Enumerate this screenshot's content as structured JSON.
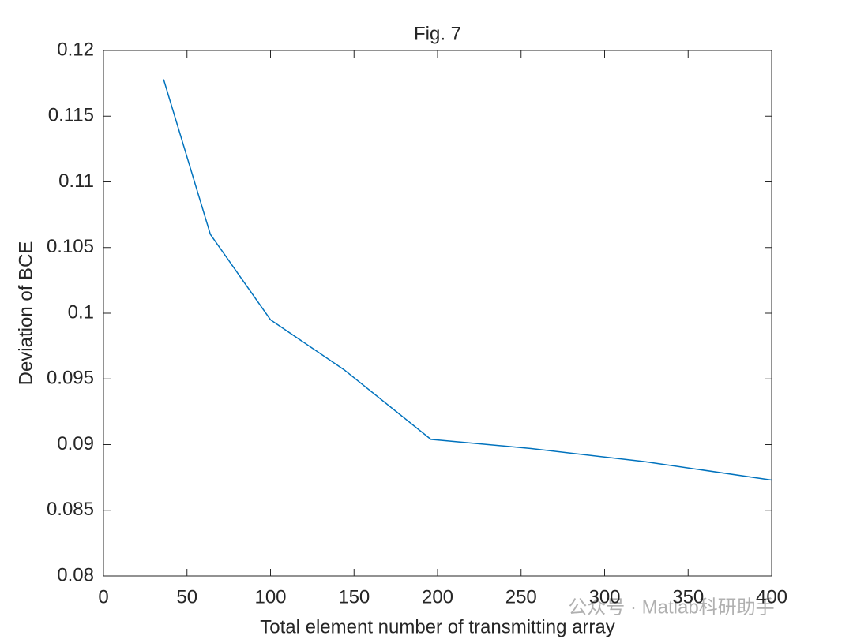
{
  "chart_data": {
    "type": "line",
    "title": "Fig. 7",
    "x_label": "Total element number of transmitting array",
    "y_label": "Deviation of BCE",
    "x": [
      36,
      64,
      100,
      144,
      196,
      256,
      324,
      400
    ],
    "series": [
      {
        "name": "Deviation of BCE",
        "color": "#0072bd",
        "values": [
          0.1178,
          0.106,
          0.0995,
          0.0957,
          0.0904,
          0.0897,
          0.0887,
          0.0873
        ]
      }
    ],
    "xlim": [
      0,
      400
    ],
    "xticks": [
      0,
      50,
      100,
      150,
      200,
      250,
      300,
      350,
      400
    ],
    "ylim": [
      0.08,
      0.12
    ],
    "yticks": [
      0.08,
      0.085,
      0.09,
      0.095,
      0.1,
      0.105,
      0.11,
      0.115,
      0.12
    ],
    "grid": false,
    "watermark": "公众号 · Matlab科研助手"
  }
}
